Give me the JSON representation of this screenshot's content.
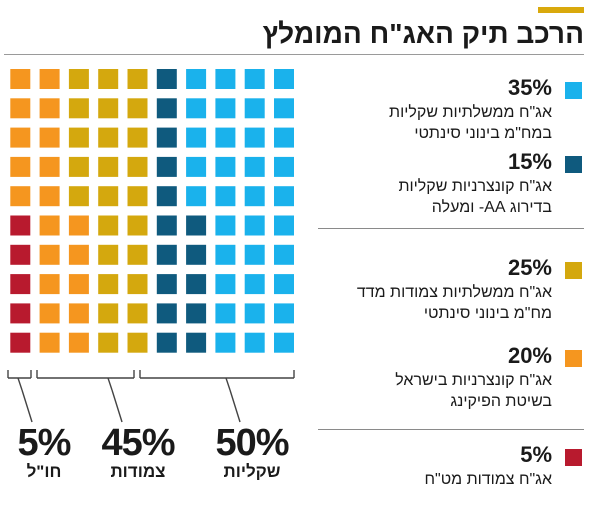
{
  "title": "הרכב תיק האג\"ח המומלץ",
  "colors": {
    "accent": "#d9a90c",
    "light_blue": "#1ab2ec",
    "dark_blue": "#0f5a7e",
    "mustard": "#d4a80e",
    "orange": "#f5961f",
    "red": "#b81a2e"
  },
  "legend": [
    {
      "pct": "35%",
      "line1": "אג\"ח ממשלתיות שקליות",
      "line2": "במח\"מ בינוני סינתטי",
      "color": "#1ab2ec"
    },
    {
      "pct": "15%",
      "line1": "אג\"ח קונצרניות שקליות",
      "line2": "בדירוג AA- ומעלה",
      "color": "#0f5a7e"
    },
    {
      "pct": "25%",
      "line1": "אג\"ח ממשלתיות צמודות מדד",
      "line2": "מח\"מ בינוני סינתטי",
      "color": "#d4a80e"
    },
    {
      "pct": "20%",
      "line1": "אג\"ח קונצרניות בישראל",
      "line2": "בשיטת הפיקינג",
      "color": "#f5961f"
    },
    {
      "pct": "5%",
      "line1": "אג\"ח צמודות מט\"ח",
      "line2": "",
      "color": "#b81a2e"
    }
  ],
  "summary": [
    {
      "pct": "50%",
      "label": "שקליות"
    },
    {
      "pct": "45%",
      "label": "צמודות"
    },
    {
      "pct": "5%",
      "label": "חו\"ל"
    }
  ],
  "chart_data": {
    "type": "waffle",
    "grid": {
      "rows": 10,
      "cols": 10
    },
    "title": "הרכב תיק האג\"ח המומלץ",
    "columns_right_to_left": [
      {
        "light_blue": 10
      },
      {
        "light_blue": 10
      },
      {
        "light_blue": 10
      },
      {
        "light_blue": 5,
        "dark_blue": 5
      },
      {
        "dark_blue": 10
      },
      {
        "mustard": 10
      },
      {
        "mustard": 10
      },
      {
        "mustard": 5,
        "orange": 5
      },
      {
        "orange": 10
      },
      {
        "orange": 5,
        "red": 5
      }
    ],
    "series": [
      {
        "name": "אג\"ח ממשלתיות שקליות במח\"מ בינוני סינתטי",
        "value": 35,
        "color": "light_blue"
      },
      {
        "name": "אג\"ח קונצרניות שקליות בדירוג AA- ומעלה",
        "value": 15,
        "color": "dark_blue"
      },
      {
        "name": "אג\"ח ממשלתיות צמודות מדד מח\"מ בינוני סינתטי",
        "value": 25,
        "color": "mustard"
      },
      {
        "name": "אג\"ח קונצרניות בישראל בשיטת הפיקינג",
        "value": 20,
        "color": "orange"
      },
      {
        "name": "אג\"ח צמודות מט\"ח",
        "value": 5,
        "color": "red"
      }
    ],
    "groups": [
      {
        "name": "שקליות",
        "value": 50
      },
      {
        "name": "צמודות",
        "value": 45
      },
      {
        "name": "חו\"ל",
        "value": 5
      }
    ]
  }
}
